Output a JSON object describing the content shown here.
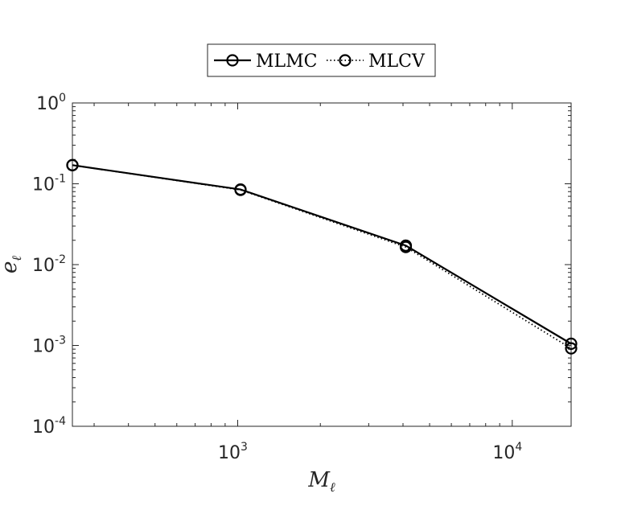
{
  "chart_data": {
    "type": "line",
    "title": "",
    "xlabel": {
      "main": "M",
      "sub": "ℓ"
    },
    "ylabel": {
      "main": "e",
      "sub": "ℓ"
    },
    "xscale": "log",
    "yscale": "log",
    "xlim": [
      250,
      16384
    ],
    "ylim": [
      0.0001,
      1
    ],
    "x_ticks": [
      {
        "value": 1000,
        "base": "10",
        "exp": "3"
      },
      {
        "value": 10000,
        "base": "10",
        "exp": "4"
      }
    ],
    "y_ticks": [
      {
        "value": 1,
        "base": "10",
        "exp": "0"
      },
      {
        "value": 0.1,
        "base": "10",
        "exp": "-1"
      },
      {
        "value": 0.01,
        "base": "10",
        "exp": "-2"
      },
      {
        "value": 0.001,
        "base": "10",
        "exp": "-3"
      },
      {
        "value": 0.0001,
        "base": "10",
        "exp": "-4"
      }
    ],
    "grid": false,
    "legend": {
      "placement": "top-center",
      "orientation": "horizontal"
    },
    "series": [
      {
        "name": "MLMC",
        "style": "solid",
        "marker": "circle",
        "color": "#000000",
        "x": [
          250,
          1024,
          4096,
          16384
        ],
        "y": [
          0.17,
          0.085,
          0.0172,
          0.00105
        ]
      },
      {
        "name": "MLCV",
        "style": "dotted",
        "marker": "circle",
        "color": "#000000",
        "x": [
          250,
          1024,
          4096,
          16384
        ],
        "y": [
          0.17,
          0.084,
          0.0165,
          0.00092
        ]
      }
    ]
  }
}
